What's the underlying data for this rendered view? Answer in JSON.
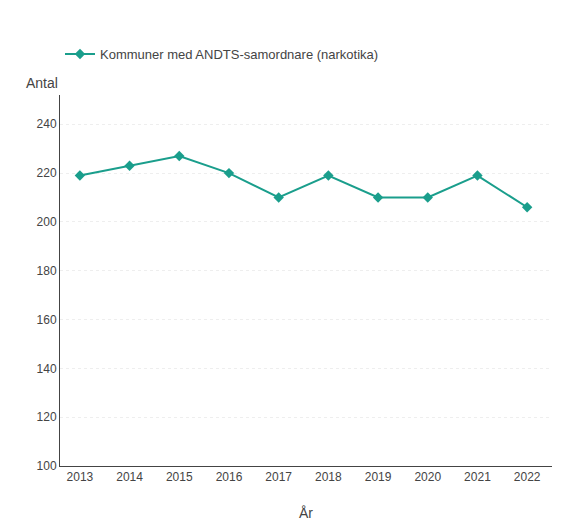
{
  "chart_data": {
    "type": "line",
    "x": [
      2013,
      2014,
      2015,
      2016,
      2017,
      2018,
      2019,
      2020,
      2021,
      2022
    ],
    "series": [
      {
        "name": "Kommuner med ANDTS-samordnare (narkotika)",
        "color": "#1a9e8c",
        "marker": "diamond",
        "values": [
          219,
          223,
          227,
          220,
          210,
          219,
          210,
          210,
          219,
          206
        ]
      }
    ],
    "xlabel": "År",
    "ylabel": "Antal",
    "xlim": [
      2012.6,
      2022.5
    ],
    "xticks": [
      2013,
      2014,
      2015,
      2016,
      2017,
      2018,
      2019,
      2020,
      2021,
      2022
    ],
    "ylim": [
      100,
      252
    ],
    "yticks": [
      100,
      120,
      140,
      160,
      180,
      200,
      220,
      240
    ],
    "grid": "y",
    "legend": "upper left"
  }
}
